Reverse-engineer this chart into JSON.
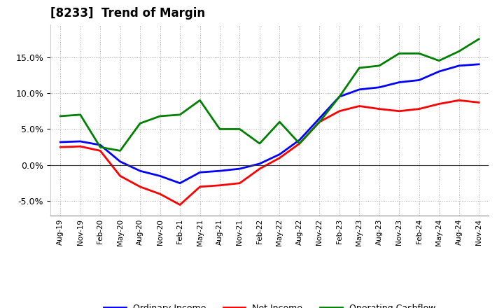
{
  "title": "[8233]  Trend of Margin",
  "x_labels": [
    "Aug-19",
    "Nov-19",
    "Feb-20",
    "May-20",
    "Aug-20",
    "Nov-20",
    "Feb-21",
    "May-21",
    "Aug-21",
    "Nov-21",
    "Feb-22",
    "May-22",
    "Aug-22",
    "Nov-22",
    "Feb-23",
    "May-23",
    "Aug-23",
    "Nov-23",
    "Feb-24",
    "May-24",
    "Aug-24",
    "Nov-24"
  ],
  "ordinary_income": [
    3.2,
    3.3,
    2.8,
    0.5,
    -0.8,
    -1.5,
    -2.5,
    -1.0,
    -0.8,
    -0.5,
    0.2,
    1.5,
    3.5,
    6.5,
    9.5,
    10.5,
    10.8,
    11.5,
    11.8,
    13.0,
    13.8,
    14.0
  ],
  "net_income": [
    2.5,
    2.6,
    2.0,
    -1.5,
    -3.0,
    -4.0,
    -5.5,
    -3.0,
    -2.8,
    -2.5,
    -0.5,
    1.0,
    3.0,
    6.0,
    7.5,
    8.2,
    7.8,
    7.5,
    7.8,
    8.5,
    9.0,
    8.7
  ],
  "operating_cashflow": [
    6.8,
    7.0,
    2.5,
    2.0,
    5.8,
    6.8,
    7.0,
    9.0,
    5.0,
    5.0,
    3.0,
    6.0,
    3.0,
    6.0,
    9.5,
    13.5,
    13.8,
    15.5,
    15.5,
    14.5,
    15.8,
    17.5
  ],
  "ylim": [
    -7.0,
    19.5
  ],
  "yticks": [
    -5.0,
    0.0,
    5.0,
    10.0,
    15.0
  ],
  "colors": {
    "ordinary_income": "#0000ff",
    "net_income": "#ff0000",
    "operating_cashflow": "#008000",
    "background": "#ffffff",
    "grid": "#aaaaaa",
    "zero_line": "#333333"
  },
  "legend": {
    "ordinary_income": "Ordinary Income",
    "net_income": "Net Income",
    "operating_cashflow": "Operating Cashflow"
  }
}
